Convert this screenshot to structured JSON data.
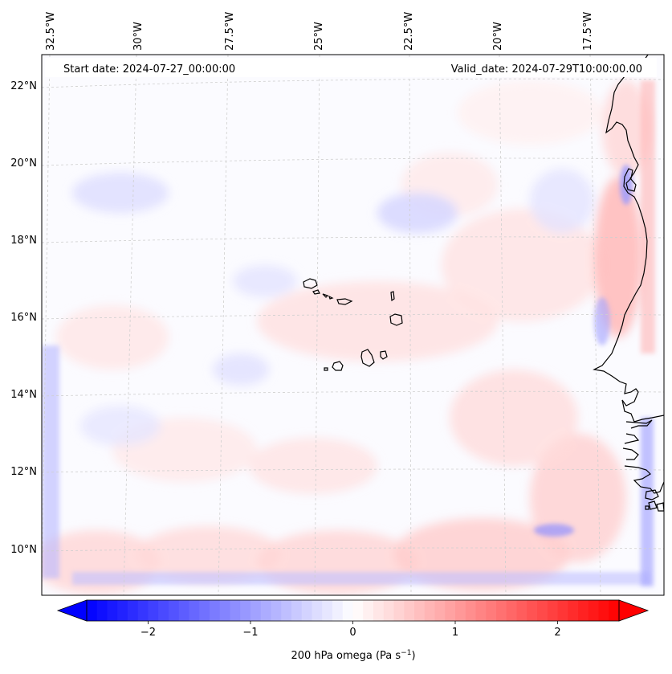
{
  "header": {
    "start_date": "Start date: 2024-07-27_00:00:00",
    "valid_date": "Valid_date: 2024-07-29T10:00:00.00"
  },
  "lon_labels": [
    "32.5°W",
    "30°W",
    "27.5°W",
    "25°W",
    "22.5°W",
    "20°W",
    "17.5°W"
  ],
  "lat_labels": [
    "22°N",
    "20°N",
    "18°N",
    "16°N",
    "14°N",
    "12°N",
    "10°N"
  ],
  "colorbar": {
    "ticks": [
      "−2",
      "−1",
      "0",
      "1",
      "2"
    ],
    "title": "200 hPa omega (Pa s",
    "title_sup": "−1",
    "title_end": ")",
    "min": -2.6,
    "max": 2.6,
    "tick_values": [
      -2,
      -1,
      0,
      1,
      2
    ],
    "levels": 52,
    "colormap": "bwr",
    "low_color": "#0000ff",
    "mid_color": "#ffffff",
    "high_color": "#ff0000"
  },
  "map": {
    "field": "200 hPa omega",
    "coastline_color": "#000000",
    "grid_color": "#cccccc",
    "grid_style": "dashed"
  }
}
